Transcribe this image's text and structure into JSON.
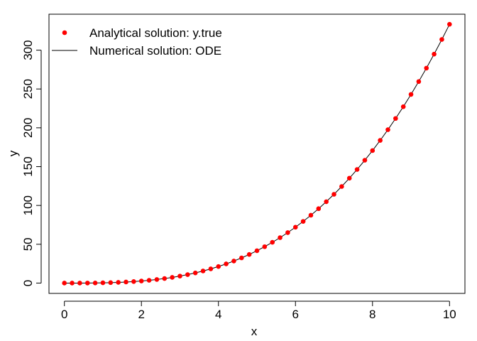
{
  "chart_data": {
    "type": "line",
    "title": "",
    "xlabel": "x",
    "ylabel": "y",
    "xlim": [
      -0.4,
      10.4
    ],
    "ylim": [
      -13.3,
      346.3
    ],
    "xticks": [
      0,
      2,
      4,
      6,
      8,
      10
    ],
    "yticks": [
      0,
      50,
      100,
      150,
      200,
      250,
      300
    ],
    "grid": false,
    "legend_position": "top-left",
    "series": [
      {
        "name": "Analytical solution: y.true",
        "style": "points",
        "color": "#ff0000",
        "x": [
          0,
          0.2,
          0.4,
          0.6,
          0.8,
          1.0,
          1.2,
          1.4,
          1.6,
          1.8,
          2.0,
          2.2,
          2.4,
          2.6,
          2.8,
          3.0,
          3.2,
          3.4,
          3.6,
          3.8,
          4.0,
          4.2,
          4.4,
          4.6,
          4.8,
          5.0,
          5.2,
          5.4,
          5.6,
          5.8,
          6.0,
          6.2,
          6.4,
          6.6,
          6.8,
          7.0,
          7.2,
          7.4,
          7.6,
          7.8,
          8.0,
          8.2,
          8.4,
          8.6,
          8.8,
          9.0,
          9.2,
          9.4,
          9.6,
          9.8,
          10.0
        ],
        "y": [
          0,
          0.003,
          0.021,
          0.072,
          0.171,
          0.333,
          0.576,
          0.915,
          1.365,
          1.944,
          2.667,
          3.549,
          4.608,
          5.859,
          7.317,
          9.0,
          10.923,
          13.101,
          15.552,
          18.291,
          21.333,
          24.696,
          28.395,
          32.445,
          36.864,
          41.667,
          46.869,
          52.488,
          58.539,
          65.037,
          72.0,
          79.443,
          87.381,
          95.832,
          104.811,
          114.333,
          124.416,
          135.075,
          146.325,
          158.184,
          170.667,
          183.789,
          197.568,
          212.019,
          227.157,
          243.0,
          259.563,
          276.861,
          294.912,
          313.731,
          333.333
        ]
      },
      {
        "name": "Numerical solution: ODE",
        "style": "line",
        "color": "#000000",
        "x": [
          0,
          0.2,
          0.4,
          0.6,
          0.8,
          1.0,
          1.2,
          1.4,
          1.6,
          1.8,
          2.0,
          2.2,
          2.4,
          2.6,
          2.8,
          3.0,
          3.2,
          3.4,
          3.6,
          3.8,
          4.0,
          4.2,
          4.4,
          4.6,
          4.8,
          5.0,
          5.2,
          5.4,
          5.6,
          5.8,
          6.0,
          6.2,
          6.4,
          6.6,
          6.8,
          7.0,
          7.2,
          7.4,
          7.6,
          7.8,
          8.0,
          8.2,
          8.4,
          8.6,
          8.8,
          9.0,
          9.2,
          9.4,
          9.6,
          9.8,
          10.0
        ],
        "y": [
          0,
          0.003,
          0.021,
          0.072,
          0.171,
          0.333,
          0.576,
          0.915,
          1.365,
          1.944,
          2.667,
          3.549,
          4.608,
          5.859,
          7.317,
          9.0,
          10.923,
          13.101,
          15.552,
          18.291,
          21.333,
          24.696,
          28.395,
          32.445,
          36.864,
          41.667,
          46.869,
          52.488,
          58.539,
          65.037,
          72.0,
          79.443,
          87.381,
          95.832,
          104.811,
          114.333,
          124.416,
          135.075,
          146.325,
          158.184,
          170.667,
          183.789,
          197.568,
          212.019,
          227.157,
          243.0,
          259.563,
          276.861,
          294.912,
          313.731,
          333.333
        ]
      }
    ]
  }
}
